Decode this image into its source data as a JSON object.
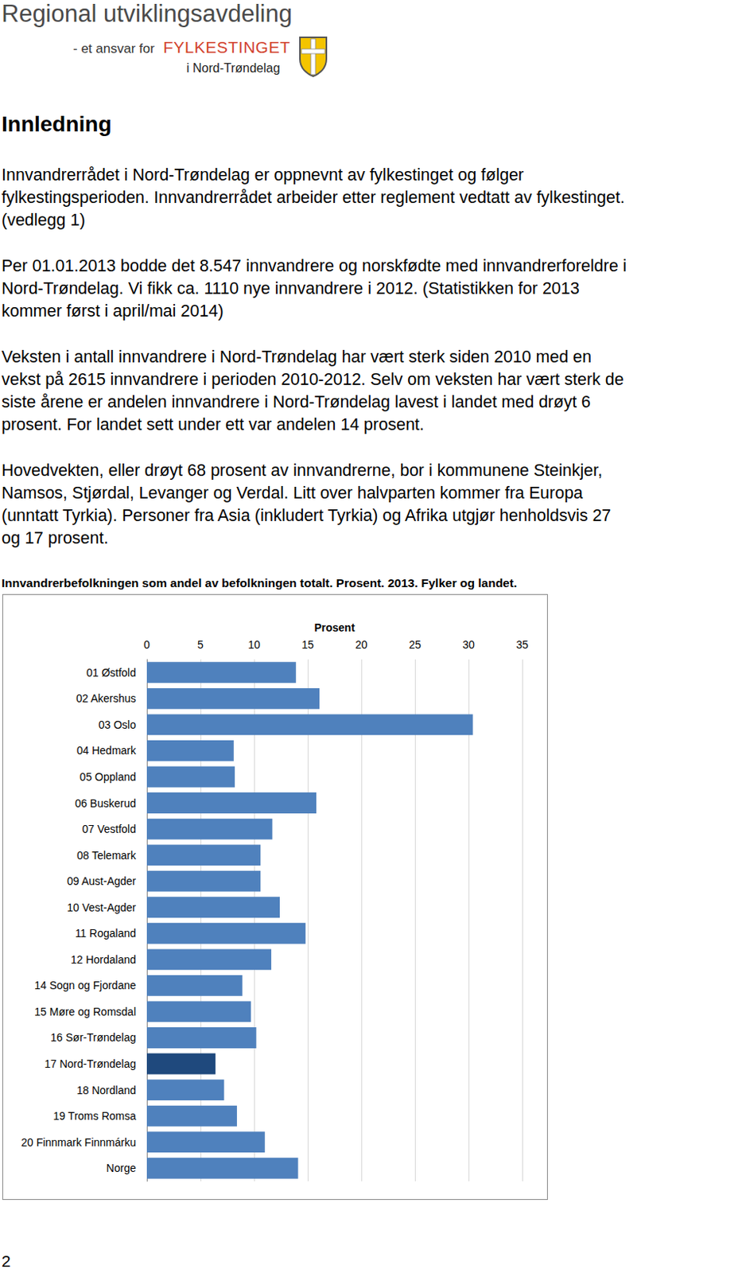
{
  "header": {
    "title": "Regional utviklingsavdeling",
    "tagline_prefix": "- et ansvar for",
    "tagline_org": "FYLKESTINGET",
    "tagline_region": "i Nord-Trøndelag"
  },
  "heading": "Innledning",
  "paragraphs": [
    [
      "Innvandrerrådet i Nord-Trøndelag er oppnevnt av fylkestinget og følger",
      "fylkestingsperioden. Innvandrerrådet arbeider etter reglement vedtatt av fylkestinget.",
      "(vedlegg 1)"
    ],
    [
      "Per 01.01.2013 bodde det 8.547 innvandrere og norskfødte med innvandrerforeldre i",
      "Nord-Trøndelag. Vi fikk ca. 1110 nye innvandrere i 2012. (Statistikken for 2013",
      "kommer først i april/mai 2014)"
    ],
    [
      "Veksten i antall innvandrere i Nord-Trøndelag har vært sterk siden 2010 med en",
      "vekst på 2615 innvandrere i perioden 2010-2012. Selv om veksten har vært sterk de",
      "siste årene er andelen innvandrere i Nord-Trøndelag lavest i landet med drøyt 6",
      "prosent. For landet sett under ett var andelen 14 prosent."
    ],
    [
      "Hovedvekten, eller drøyt 68 prosent av innvandrerne, bor i kommunene Steinkjer,",
      "Namsos, Stjørdal, Levanger og Verdal. Litt over halvparten kommer fra Europa",
      "(unntatt Tyrkia). Personer fra Asia (inkludert Tyrkia) og Afrika utgjør henholdsvis 27",
      "og 17 prosent."
    ]
  ],
  "chart_data": {
    "type": "bar",
    "orientation": "horizontal",
    "title": "Innvandrerbefolkningen som andel av befolkningen totalt. Prosent. 2013. Fylker og landet.",
    "xlabel": "Prosent",
    "categories": [
      "01 Østfold",
      "02 Akershus",
      "03 Oslo",
      "04 Hedmark",
      "05 Oppland",
      "06 Buskerud",
      "07 Vestfold",
      "08 Telemark",
      "09 Aust-Agder",
      "10 Vest-Agder",
      "11 Rogaland",
      "12 Hordaland",
      "14 Sogn og Fjordane",
      "15 Møre og Romsdal",
      "16 Sør-Trøndelag",
      "17 Nord-Trøndelag",
      "18 Nordland",
      "19 Troms Romsa",
      "20 Finnmark Finnmárku",
      "Norge"
    ],
    "values": [
      13.9,
      16.1,
      30.4,
      8.1,
      8.2,
      15.8,
      11.7,
      10.6,
      10.6,
      12.4,
      14.8,
      11.6,
      8.9,
      9.7,
      10.2,
      6.4,
      7.2,
      8.4,
      11.0,
      14.1
    ],
    "colors": [
      "#4f81bd",
      "#4f81bd",
      "#4f81bd",
      "#4f81bd",
      "#4f81bd",
      "#4f81bd",
      "#4f81bd",
      "#4f81bd",
      "#4f81bd",
      "#4f81bd",
      "#4f81bd",
      "#4f81bd",
      "#4f81bd",
      "#4f81bd",
      "#4f81bd",
      "#1f497d",
      "#4f81bd",
      "#4f81bd",
      "#4f81bd",
      "#4f81bd"
    ],
    "xlim": [
      0,
      35
    ],
    "xticks": [
      0,
      5,
      10,
      15,
      20,
      25,
      30,
      35
    ],
    "grid": true
  },
  "page_number": "2"
}
